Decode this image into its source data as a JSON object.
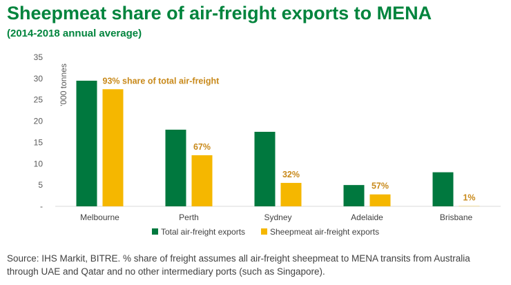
{
  "title": "Sheepmeat share of air-freight exports to MENA",
  "subtitle": "(2014-2018 annual average)",
  "source": "Source: IHS Markit, BITRE. % share of freight assumes all air-freight sheepmeat to MENA transits from Australia through UAE and Qatar and no other intermediary ports (such as Singapore).",
  "chart_data": {
    "type": "bar",
    "categories": [
      "Melbourne",
      "Perth",
      "Sydney",
      "Adelaide",
      "Brisbane"
    ],
    "series": [
      {
        "name": "Total air-freight exports",
        "color": "#00783e",
        "values": [
          29.5,
          18,
          17.5,
          5,
          8
        ]
      },
      {
        "name": "Sheepmeat air-freight exports",
        "color": "#f5b700",
        "values": [
          27.5,
          12,
          5.5,
          2.8,
          0.05
        ]
      }
    ],
    "data_labels": [
      "93% share of total air-freight",
      "67%",
      "32%",
      "57%",
      "1%"
    ],
    "data_label_color": "#c8891a",
    "ylabel": "'000 tonnes",
    "ylim": [
      0,
      35
    ],
    "yticks": [
      0,
      5,
      10,
      15,
      20,
      25,
      30,
      35
    ],
    "ytick_labels": [
      "-",
      "5",
      "10",
      "15",
      "20",
      "25",
      "30",
      "35"
    ],
    "grid": false,
    "legend_position": "bottom"
  }
}
